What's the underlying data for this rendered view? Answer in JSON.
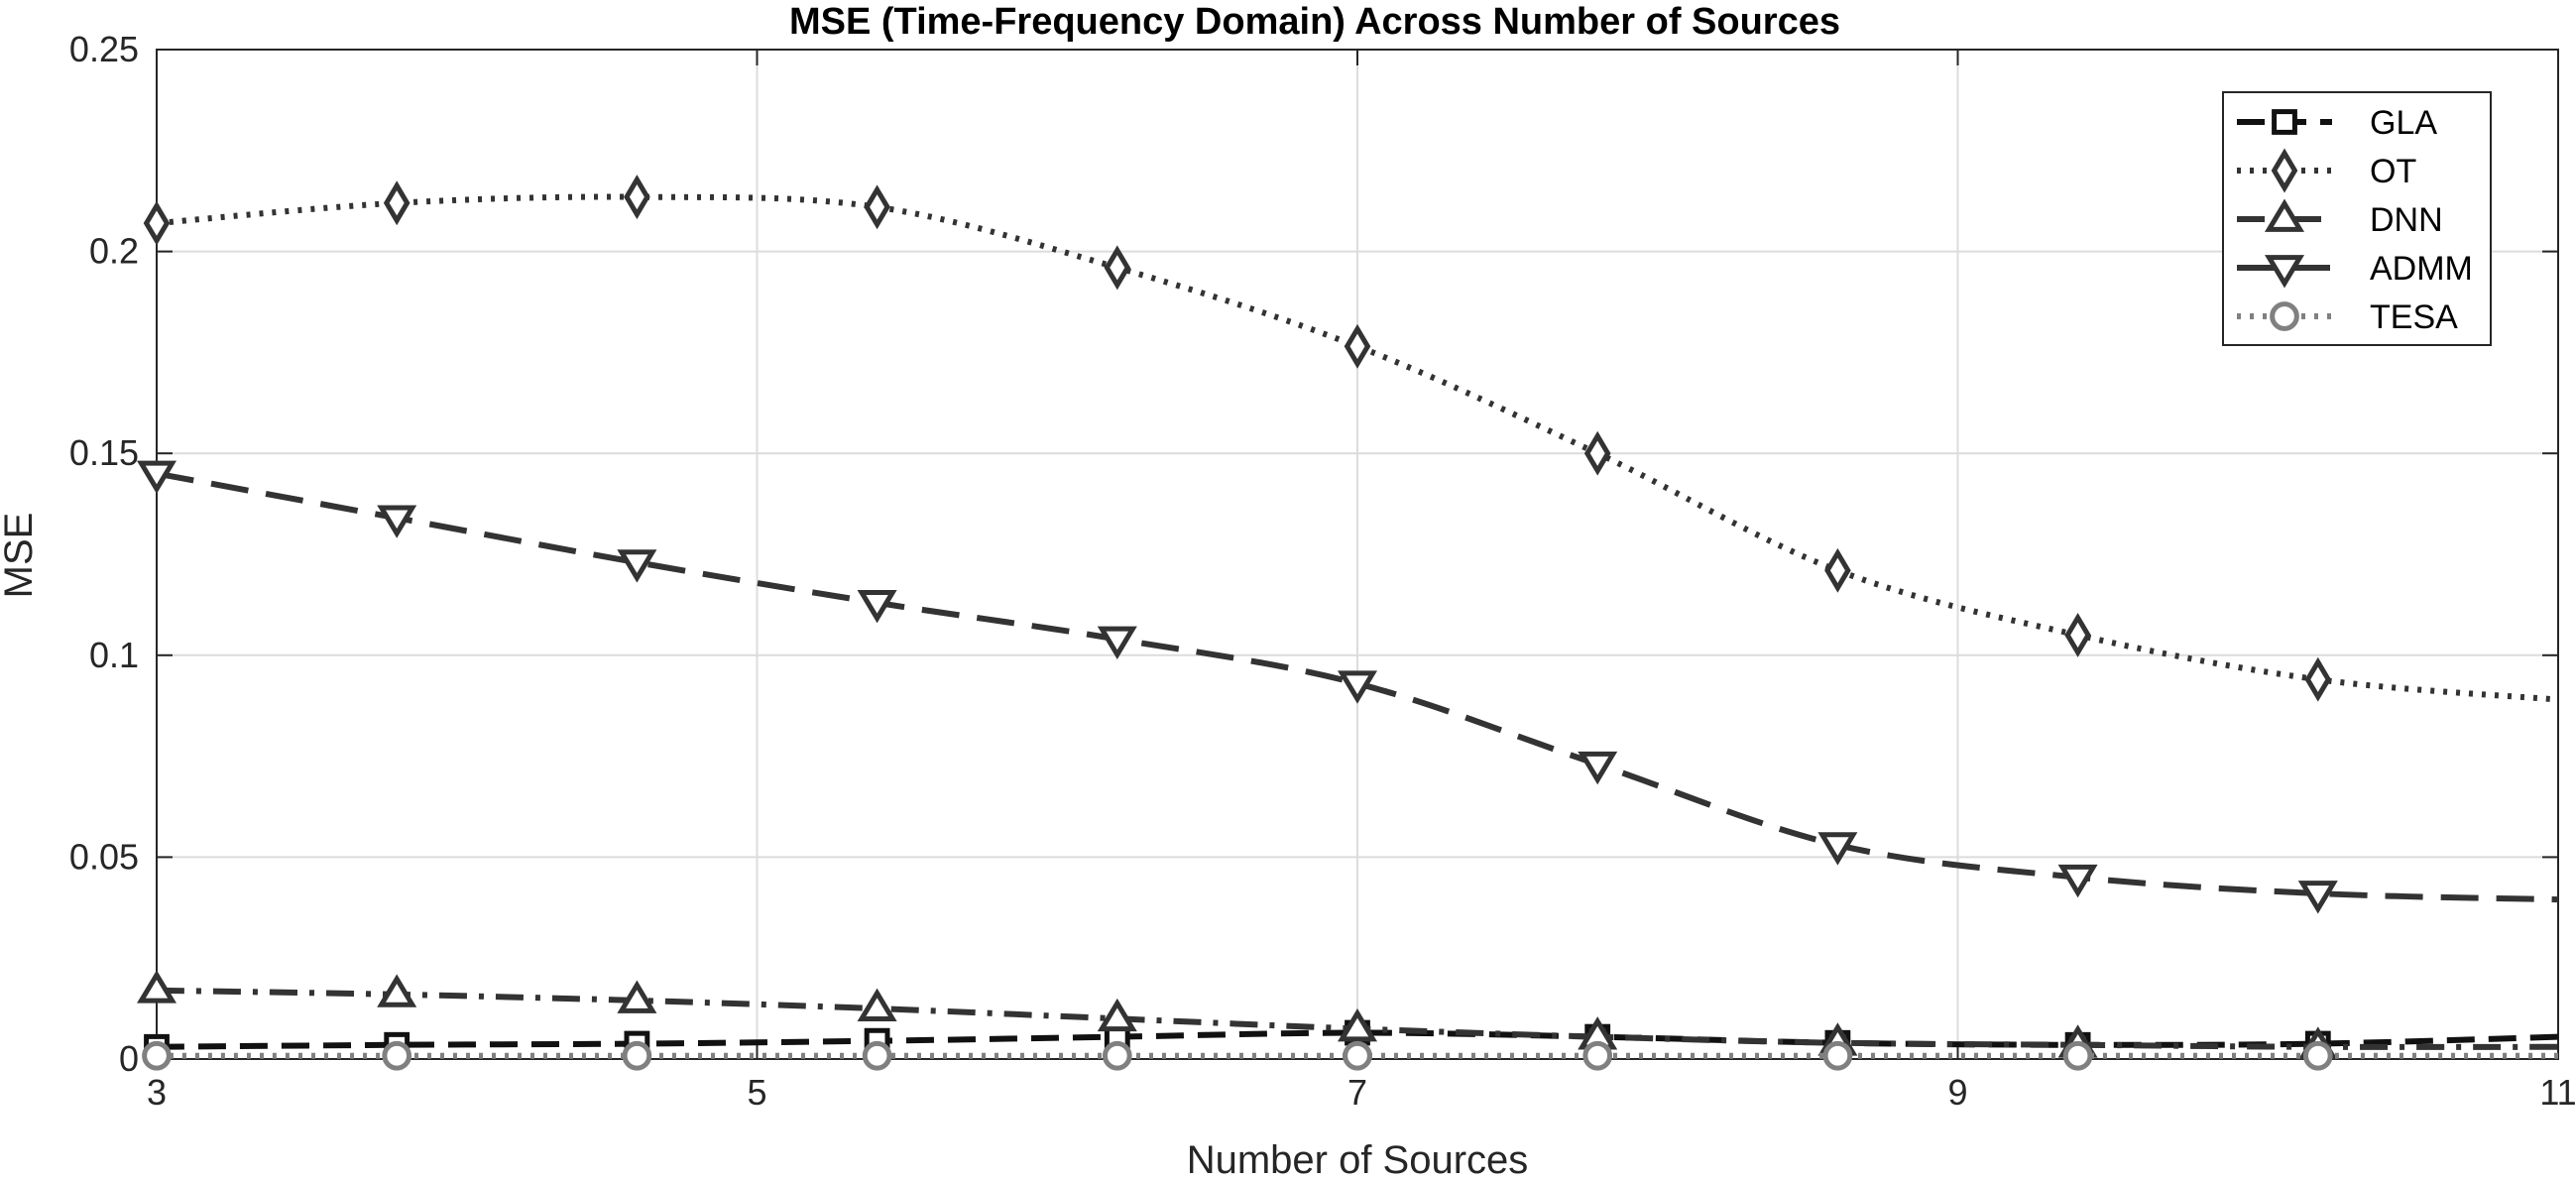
{
  "chart_data": {
    "type": "line",
    "title": "MSE (Time-Frequency Domain) Across Number of Sources",
    "xlabel": "Number of Sources",
    "ylabel": "MSE",
    "xlim": [
      3,
      11
    ],
    "ylim": [
      0,
      0.25
    ],
    "xticks": [
      "3",
      "5",
      "7",
      "9",
      "11"
    ],
    "xtick_values": [
      3,
      5,
      7,
      9,
      11
    ],
    "yticks": [
      "0",
      "0.05",
      "0.1",
      "0.15",
      "0.2",
      "0.25"
    ],
    "ytick_values": [
      0,
      0.05,
      0.1,
      0.15,
      0.2,
      0.25
    ],
    "grid": true,
    "legend_position": "top-right",
    "x": [
      3,
      3.8,
      4.6,
      5.4,
      6.2,
      7,
      7.8,
      8.6,
      9.4,
      10.2,
      11
    ],
    "series": [
      {
        "name": "GLA",
        "marker": "square",
        "dash": "dashed-heavy",
        "color": "#111111",
        "values": [
          0.003,
          0.0035,
          0.0038,
          0.0045,
          0.0055,
          0.0065,
          0.0055,
          0.004,
          0.0035,
          0.0038,
          0.0055
        ]
      },
      {
        "name": "OT",
        "marker": "diamond",
        "dash": "dotted",
        "color": "#333333",
        "values": [
          0.207,
          0.212,
          0.2135,
          0.211,
          0.196,
          0.1765,
          0.15,
          0.121,
          0.105,
          0.094,
          0.089
        ]
      },
      {
        "name": "DNN",
        "marker": "triangle-up",
        "dash": "dash-dot",
        "color": "#333333",
        "values": [
          0.017,
          0.016,
          0.0145,
          0.0125,
          0.01,
          0.0075,
          0.0055,
          0.004,
          0.0035,
          0.003,
          0.003
        ]
      },
      {
        "name": "ADMM",
        "marker": "triangle-down",
        "dash": "long-dash",
        "color": "#333333",
        "values": [
          0.145,
          0.134,
          0.123,
          0.113,
          0.104,
          0.093,
          0.073,
          0.053,
          0.045,
          0.041,
          0.0395
        ]
      },
      {
        "name": "TESA",
        "marker": "circle",
        "dash": "dotted",
        "color": "#808080",
        "values": [
          0.0008,
          0.0008,
          0.0008,
          0.0008,
          0.0008,
          0.0008,
          0.0008,
          0.0008,
          0.0008,
          0.0008,
          0.0008
        ]
      }
    ]
  }
}
